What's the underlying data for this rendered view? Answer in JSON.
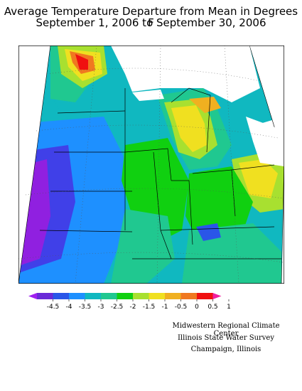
{
  "title": {
    "line1": "Average Temperature Departure from Mean in Degrees F",
    "line2": "September 1, 2006 to September 30, 2006"
  },
  "legend": {
    "ticks": [
      "-4.5",
      "-4",
      "-3.5",
      "-3",
      "-2.5",
      "-2",
      "-1.5",
      "-1",
      "-0.5",
      "0",
      "0.5",
      "1"
    ],
    "colors": [
      "#a020f0",
      "#6a2ad8",
      "#2a56e8",
      "#1e90ff",
      "#10b8c0",
      "#20c890",
      "#10d010",
      "#a8e030",
      "#f0e020",
      "#f0b020",
      "#f07820",
      "#f01010",
      "#f020a0"
    ]
  },
  "map_colors": {
    "cold_extreme": "#9020e0",
    "very_cold": "#4040e8",
    "cold": "#1e90ff",
    "moderate": "#10b8c0",
    "mild": "#20c890",
    "near_normal": "#10d010",
    "slightly_below": "#a8e030",
    "normal": "#f0e020",
    "warm": "#f0b020",
    "warmer": "#f07820",
    "hot": "#f01010"
  },
  "credits": {
    "line1": "Midwestern Regional Climate Center",
    "line2": "Illinois State Water Survey",
    "line3": "Champaign, Illinois"
  }
}
